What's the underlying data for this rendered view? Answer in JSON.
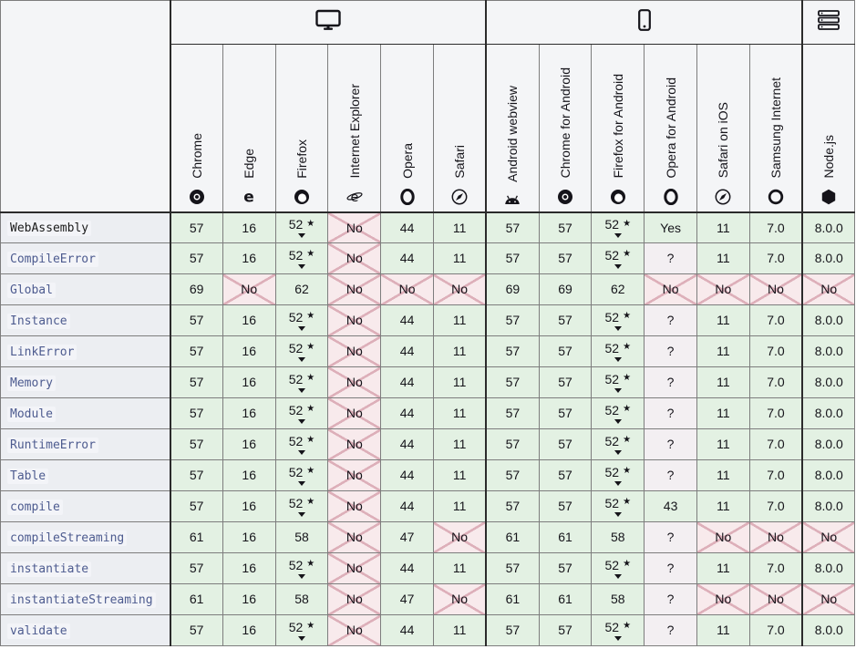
{
  "legend": {
    "note_star": "★"
  },
  "colors": {
    "supported_bg": "#e3f1e3",
    "unsupported_bg": "#f8eaec",
    "unsupported_cross": "#ddafb9",
    "unknown_bg": "#f3eff2",
    "header_bg": "#f4f5f7",
    "feature_col_bg": "#eceef2",
    "link_color": "#4d5b8f",
    "border_dark": "#2b2b2b"
  },
  "groups": [
    {
      "id": "desktop",
      "icon": "desktop-icon",
      "span": 6
    },
    {
      "id": "mobile",
      "icon": "mobile-icon",
      "span": 6
    },
    {
      "id": "server",
      "icon": "server-icon",
      "span": 1
    }
  ],
  "browsers": [
    {
      "label": "Chrome",
      "icon": "chrome-icon"
    },
    {
      "label": "Edge",
      "icon": "edge-icon"
    },
    {
      "label": "Firefox",
      "icon": "firefox-icon"
    },
    {
      "label": "Internet Explorer",
      "icon": "internet-explorer-icon"
    },
    {
      "label": "Opera",
      "icon": "opera-icon"
    },
    {
      "label": "Safari",
      "icon": "safari-icon"
    },
    {
      "label": "Android webview",
      "icon": "android-icon"
    },
    {
      "label": "Chrome for Android",
      "icon": "chrome-icon"
    },
    {
      "label": "Firefox for Android",
      "icon": "firefox-icon"
    },
    {
      "label": "Opera for Android",
      "icon": "opera-icon"
    },
    {
      "label": "Safari on iOS",
      "icon": "safari-icon"
    },
    {
      "label": "Samsung Internet",
      "icon": "samsung-internet-icon"
    },
    {
      "label": "Node.js",
      "icon": "nodejs-icon"
    }
  ],
  "rows": [
    {
      "feature": "WebAssembly",
      "link": false,
      "cells": [
        {
          "text": "57",
          "support": "yes"
        },
        {
          "text": "16",
          "support": "yes"
        },
        {
          "text": "52",
          "support": "yes",
          "star": true,
          "expand": true
        },
        {
          "text": "No",
          "support": "no"
        },
        {
          "text": "44",
          "support": "yes"
        },
        {
          "text": "11",
          "support": "yes"
        },
        {
          "text": "57",
          "support": "yes"
        },
        {
          "text": "57",
          "support": "yes"
        },
        {
          "text": "52",
          "support": "yes",
          "star": true,
          "expand": true
        },
        {
          "text": "Yes",
          "support": "yes"
        },
        {
          "text": "11",
          "support": "yes"
        },
        {
          "text": "7.0",
          "support": "yes"
        },
        {
          "text": "8.0.0",
          "support": "yes"
        }
      ]
    },
    {
      "feature": "CompileError",
      "link": true,
      "cells": [
        {
          "text": "57",
          "support": "yes"
        },
        {
          "text": "16",
          "support": "yes"
        },
        {
          "text": "52",
          "support": "yes",
          "star": true,
          "expand": true
        },
        {
          "text": "No",
          "support": "no"
        },
        {
          "text": "44",
          "support": "yes"
        },
        {
          "text": "11",
          "support": "yes"
        },
        {
          "text": "57",
          "support": "yes"
        },
        {
          "text": "57",
          "support": "yes"
        },
        {
          "text": "52",
          "support": "yes",
          "star": true,
          "expand": true
        },
        {
          "text": "?",
          "support": "unknown"
        },
        {
          "text": "11",
          "support": "yes"
        },
        {
          "text": "7.0",
          "support": "yes"
        },
        {
          "text": "8.0.0",
          "support": "yes"
        }
      ]
    },
    {
      "feature": "Global",
      "link": true,
      "cells": [
        {
          "text": "69",
          "support": "yes"
        },
        {
          "text": "No",
          "support": "no"
        },
        {
          "text": "62",
          "support": "yes"
        },
        {
          "text": "No",
          "support": "no"
        },
        {
          "text": "No",
          "support": "no"
        },
        {
          "text": "No",
          "support": "no"
        },
        {
          "text": "69",
          "support": "yes"
        },
        {
          "text": "69",
          "support": "yes"
        },
        {
          "text": "62",
          "support": "yes"
        },
        {
          "text": "No",
          "support": "no"
        },
        {
          "text": "No",
          "support": "no"
        },
        {
          "text": "No",
          "support": "no"
        },
        {
          "text": "No",
          "support": "no"
        }
      ]
    },
    {
      "feature": "Instance",
      "link": true,
      "cells": [
        {
          "text": "57",
          "support": "yes"
        },
        {
          "text": "16",
          "support": "yes"
        },
        {
          "text": "52",
          "support": "yes",
          "star": true,
          "expand": true
        },
        {
          "text": "No",
          "support": "no"
        },
        {
          "text": "44",
          "support": "yes"
        },
        {
          "text": "11",
          "support": "yes"
        },
        {
          "text": "57",
          "support": "yes"
        },
        {
          "text": "57",
          "support": "yes"
        },
        {
          "text": "52",
          "support": "yes",
          "star": true,
          "expand": true
        },
        {
          "text": "?",
          "support": "unknown"
        },
        {
          "text": "11",
          "support": "yes"
        },
        {
          "text": "7.0",
          "support": "yes"
        },
        {
          "text": "8.0.0",
          "support": "yes"
        }
      ]
    },
    {
      "feature": "LinkError",
      "link": true,
      "cells": [
        {
          "text": "57",
          "support": "yes"
        },
        {
          "text": "16",
          "support": "yes"
        },
        {
          "text": "52",
          "support": "yes",
          "star": true,
          "expand": true
        },
        {
          "text": "No",
          "support": "no"
        },
        {
          "text": "44",
          "support": "yes"
        },
        {
          "text": "11",
          "support": "yes"
        },
        {
          "text": "57",
          "support": "yes"
        },
        {
          "text": "57",
          "support": "yes"
        },
        {
          "text": "52",
          "support": "yes",
          "star": true,
          "expand": true
        },
        {
          "text": "?",
          "support": "unknown"
        },
        {
          "text": "11",
          "support": "yes"
        },
        {
          "text": "7.0",
          "support": "yes"
        },
        {
          "text": "8.0.0",
          "support": "yes"
        }
      ]
    },
    {
      "feature": "Memory",
      "link": true,
      "cells": [
        {
          "text": "57",
          "support": "yes"
        },
        {
          "text": "16",
          "support": "yes"
        },
        {
          "text": "52",
          "support": "yes",
          "star": true,
          "expand": true
        },
        {
          "text": "No",
          "support": "no"
        },
        {
          "text": "44",
          "support": "yes"
        },
        {
          "text": "11",
          "support": "yes"
        },
        {
          "text": "57",
          "support": "yes"
        },
        {
          "text": "57",
          "support": "yes"
        },
        {
          "text": "52",
          "support": "yes",
          "star": true,
          "expand": true
        },
        {
          "text": "?",
          "support": "unknown"
        },
        {
          "text": "11",
          "support": "yes"
        },
        {
          "text": "7.0",
          "support": "yes"
        },
        {
          "text": "8.0.0",
          "support": "yes"
        }
      ]
    },
    {
      "feature": "Module",
      "link": true,
      "cells": [
        {
          "text": "57",
          "support": "yes"
        },
        {
          "text": "16",
          "support": "yes"
        },
        {
          "text": "52",
          "support": "yes",
          "star": true,
          "expand": true
        },
        {
          "text": "No",
          "support": "no"
        },
        {
          "text": "44",
          "support": "yes"
        },
        {
          "text": "11",
          "support": "yes"
        },
        {
          "text": "57",
          "support": "yes"
        },
        {
          "text": "57",
          "support": "yes"
        },
        {
          "text": "52",
          "support": "yes",
          "star": true,
          "expand": true
        },
        {
          "text": "?",
          "support": "unknown"
        },
        {
          "text": "11",
          "support": "yes"
        },
        {
          "text": "7.0",
          "support": "yes"
        },
        {
          "text": "8.0.0",
          "support": "yes"
        }
      ]
    },
    {
      "feature": "RuntimeError",
      "link": true,
      "cells": [
        {
          "text": "57",
          "support": "yes"
        },
        {
          "text": "16",
          "support": "yes"
        },
        {
          "text": "52",
          "support": "yes",
          "star": true,
          "expand": true
        },
        {
          "text": "No",
          "support": "no"
        },
        {
          "text": "44",
          "support": "yes"
        },
        {
          "text": "11",
          "support": "yes"
        },
        {
          "text": "57",
          "support": "yes"
        },
        {
          "text": "57",
          "support": "yes"
        },
        {
          "text": "52",
          "support": "yes",
          "star": true,
          "expand": true
        },
        {
          "text": "?",
          "support": "unknown"
        },
        {
          "text": "11",
          "support": "yes"
        },
        {
          "text": "7.0",
          "support": "yes"
        },
        {
          "text": "8.0.0",
          "support": "yes"
        }
      ]
    },
    {
      "feature": "Table",
      "link": true,
      "cells": [
        {
          "text": "57",
          "support": "yes"
        },
        {
          "text": "16",
          "support": "yes"
        },
        {
          "text": "52",
          "support": "yes",
          "star": true,
          "expand": true
        },
        {
          "text": "No",
          "support": "no"
        },
        {
          "text": "44",
          "support": "yes"
        },
        {
          "text": "11",
          "support": "yes"
        },
        {
          "text": "57",
          "support": "yes"
        },
        {
          "text": "57",
          "support": "yes"
        },
        {
          "text": "52",
          "support": "yes",
          "star": true,
          "expand": true
        },
        {
          "text": "?",
          "support": "unknown"
        },
        {
          "text": "11",
          "support": "yes"
        },
        {
          "text": "7.0",
          "support": "yes"
        },
        {
          "text": "8.0.0",
          "support": "yes"
        }
      ]
    },
    {
      "feature": "compile",
      "link": true,
      "cells": [
        {
          "text": "57",
          "support": "yes"
        },
        {
          "text": "16",
          "support": "yes"
        },
        {
          "text": "52",
          "support": "yes",
          "star": true,
          "expand": true
        },
        {
          "text": "No",
          "support": "no"
        },
        {
          "text": "44",
          "support": "yes"
        },
        {
          "text": "11",
          "support": "yes"
        },
        {
          "text": "57",
          "support": "yes"
        },
        {
          "text": "57",
          "support": "yes"
        },
        {
          "text": "52",
          "support": "yes",
          "star": true,
          "expand": true
        },
        {
          "text": "43",
          "support": "yes"
        },
        {
          "text": "11",
          "support": "yes"
        },
        {
          "text": "7.0",
          "support": "yes"
        },
        {
          "text": "8.0.0",
          "support": "yes"
        }
      ]
    },
    {
      "feature": "compileStreaming",
      "link": true,
      "cells": [
        {
          "text": "61",
          "support": "yes"
        },
        {
          "text": "16",
          "support": "yes"
        },
        {
          "text": "58",
          "support": "yes"
        },
        {
          "text": "No",
          "support": "no"
        },
        {
          "text": "47",
          "support": "yes"
        },
        {
          "text": "No",
          "support": "no"
        },
        {
          "text": "61",
          "support": "yes"
        },
        {
          "text": "61",
          "support": "yes"
        },
        {
          "text": "58",
          "support": "yes"
        },
        {
          "text": "?",
          "support": "unknown"
        },
        {
          "text": "No",
          "support": "no"
        },
        {
          "text": "No",
          "support": "no"
        },
        {
          "text": "No",
          "support": "no"
        }
      ]
    },
    {
      "feature": "instantiate",
      "link": true,
      "cells": [
        {
          "text": "57",
          "support": "yes"
        },
        {
          "text": "16",
          "support": "yes"
        },
        {
          "text": "52",
          "support": "yes",
          "star": true,
          "expand": true
        },
        {
          "text": "No",
          "support": "no"
        },
        {
          "text": "44",
          "support": "yes"
        },
        {
          "text": "11",
          "support": "yes"
        },
        {
          "text": "57",
          "support": "yes"
        },
        {
          "text": "57",
          "support": "yes"
        },
        {
          "text": "52",
          "support": "yes",
          "star": true,
          "expand": true
        },
        {
          "text": "?",
          "support": "unknown"
        },
        {
          "text": "11",
          "support": "yes"
        },
        {
          "text": "7.0",
          "support": "yes"
        },
        {
          "text": "8.0.0",
          "support": "yes"
        }
      ]
    },
    {
      "feature": "instantiateStreaming",
      "link": true,
      "cells": [
        {
          "text": "61",
          "support": "yes"
        },
        {
          "text": "16",
          "support": "yes"
        },
        {
          "text": "58",
          "support": "yes"
        },
        {
          "text": "No",
          "support": "no"
        },
        {
          "text": "47",
          "support": "yes"
        },
        {
          "text": "No",
          "support": "no"
        },
        {
          "text": "61",
          "support": "yes"
        },
        {
          "text": "61",
          "support": "yes"
        },
        {
          "text": "58",
          "support": "yes"
        },
        {
          "text": "?",
          "support": "unknown"
        },
        {
          "text": "No",
          "support": "no"
        },
        {
          "text": "No",
          "support": "no"
        },
        {
          "text": "No",
          "support": "no"
        }
      ]
    },
    {
      "feature": "validate",
      "link": true,
      "cells": [
        {
          "text": "57",
          "support": "yes"
        },
        {
          "text": "16",
          "support": "yes"
        },
        {
          "text": "52",
          "support": "yes",
          "star": true,
          "expand": true
        },
        {
          "text": "No",
          "support": "no"
        },
        {
          "text": "44",
          "support": "yes"
        },
        {
          "text": "11",
          "support": "yes"
        },
        {
          "text": "57",
          "support": "yes"
        },
        {
          "text": "57",
          "support": "yes"
        },
        {
          "text": "52",
          "support": "yes",
          "star": true,
          "expand": true
        },
        {
          "text": "?",
          "support": "unknown"
        },
        {
          "text": "11",
          "support": "yes"
        },
        {
          "text": "7.0",
          "support": "yes"
        },
        {
          "text": "8.0.0",
          "support": "yes"
        }
      ]
    }
  ]
}
